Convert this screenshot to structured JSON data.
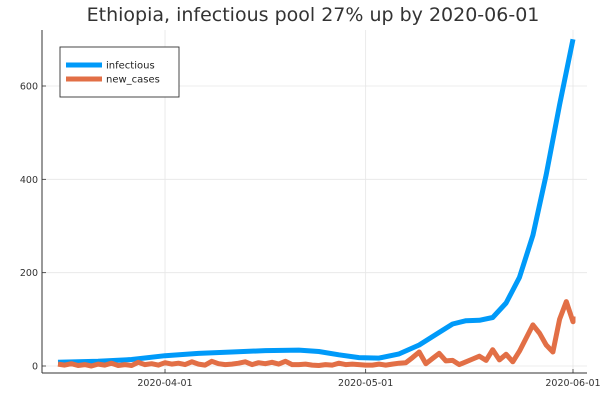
{
  "chart_data": {
    "type": "line",
    "title": "Ethiopia, infectious pool 27% up by 2020-06-01",
    "xlabel": "",
    "ylabel": "",
    "x_type": "date",
    "x_range": [
      "2020-03-16",
      "2020-06-01"
    ],
    "x_ticks": [
      "2020-04-01",
      "2020-05-01",
      "2020-06-01"
    ],
    "x_tick_labels": [
      "2020-04-01",
      "2020-05-01",
      "2020-06-01"
    ],
    "ylim": [
      -15,
      720
    ],
    "y_ticks": [
      0,
      200,
      400,
      600
    ],
    "y_tick_labels": [
      "0",
      "200",
      "400",
      "600"
    ],
    "grid": true,
    "legend_position": "top-left",
    "series": [
      {
        "name": "infectious",
        "color": "#009AF9",
        "points": [
          [
            "2020-03-16",
            8
          ],
          [
            "2020-03-22",
            10
          ],
          [
            "2020-03-27",
            14
          ],
          [
            "2020-04-01",
            22
          ],
          [
            "2020-04-06",
            27
          ],
          [
            "2020-04-11",
            30
          ],
          [
            "2020-04-16",
            33
          ],
          [
            "2020-04-21",
            34
          ],
          [
            "2020-04-24",
            31
          ],
          [
            "2020-04-27",
            24
          ],
          [
            "2020-04-30",
            18
          ],
          [
            "2020-05-03",
            17
          ],
          [
            "2020-05-06",
            26
          ],
          [
            "2020-05-09",
            45
          ],
          [
            "2020-05-12",
            72
          ],
          [
            "2020-05-14",
            90
          ],
          [
            "2020-05-16",
            97
          ],
          [
            "2020-05-18",
            98
          ],
          [
            "2020-05-20",
            104
          ],
          [
            "2020-05-22",
            135
          ],
          [
            "2020-05-24",
            190
          ],
          [
            "2020-05-26",
            280
          ],
          [
            "2020-05-28",
            410
          ],
          [
            "2020-05-30",
            560
          ],
          [
            "2020-06-01",
            700
          ]
        ]
      },
      {
        "name": "new_cases",
        "color": "#E26F46",
        "points": [
          [
            "2020-03-16",
            4
          ],
          [
            "2020-03-17",
            2
          ],
          [
            "2020-03-18",
            5
          ],
          [
            "2020-03-19",
            1
          ],
          [
            "2020-03-20",
            3
          ],
          [
            "2020-03-21",
            0
          ],
          [
            "2020-03-22",
            4
          ],
          [
            "2020-03-23",
            2
          ],
          [
            "2020-03-24",
            6
          ],
          [
            "2020-03-25",
            1
          ],
          [
            "2020-03-26",
            3
          ],
          [
            "2020-03-27",
            1
          ],
          [
            "2020-03-28",
            8
          ],
          [
            "2020-03-29",
            3
          ],
          [
            "2020-03-30",
            5
          ],
          [
            "2020-03-31",
            2
          ],
          [
            "2020-04-01",
            7
          ],
          [
            "2020-04-02",
            4
          ],
          [
            "2020-04-03",
            6
          ],
          [
            "2020-04-04",
            3
          ],
          [
            "2020-04-05",
            9
          ],
          [
            "2020-04-06",
            4
          ],
          [
            "2020-04-07",
            2
          ],
          [
            "2020-04-08",
            10
          ],
          [
            "2020-04-09",
            5
          ],
          [
            "2020-04-10",
            3
          ],
          [
            "2020-04-11",
            4
          ],
          [
            "2020-04-12",
            6
          ],
          [
            "2020-04-13",
            9
          ],
          [
            "2020-04-14",
            3
          ],
          [
            "2020-04-15",
            7
          ],
          [
            "2020-04-16",
            5
          ],
          [
            "2020-04-17",
            8
          ],
          [
            "2020-04-18",
            4
          ],
          [
            "2020-04-19",
            10
          ],
          [
            "2020-04-20",
            3
          ],
          [
            "2020-04-21",
            3
          ],
          [
            "2020-04-22",
            4
          ],
          [
            "2020-04-23",
            2
          ],
          [
            "2020-04-24",
            1
          ],
          [
            "2020-04-25",
            3
          ],
          [
            "2020-04-26",
            2
          ],
          [
            "2020-04-27",
            6
          ],
          [
            "2020-04-28",
            3
          ],
          [
            "2020-04-29",
            4
          ],
          [
            "2020-04-30",
            3
          ],
          [
            "2020-05-01",
            2
          ],
          [
            "2020-05-02",
            2
          ],
          [
            "2020-05-03",
            4
          ],
          [
            "2020-05-04",
            2
          ],
          [
            "2020-05-05",
            4
          ],
          [
            "2020-05-06",
            6
          ],
          [
            "2020-05-07",
            7
          ],
          [
            "2020-05-08",
            18
          ],
          [
            "2020-05-09",
            30
          ],
          [
            "2020-05-10",
            5
          ],
          [
            "2020-05-11",
            16
          ],
          [
            "2020-05-12",
            27
          ],
          [
            "2020-05-13",
            11
          ],
          [
            "2020-05-14",
            12
          ],
          [
            "2020-05-15",
            3
          ],
          [
            "2020-05-16",
            9
          ],
          [
            "2020-05-17",
            15
          ],
          [
            "2020-05-18",
            21
          ],
          [
            "2020-05-19",
            12
          ],
          [
            "2020-05-20",
            35
          ],
          [
            "2020-05-21",
            13
          ],
          [
            "2020-05-22",
            25
          ],
          [
            "2020-05-23",
            9
          ],
          [
            "2020-05-24",
            32
          ],
          [
            "2020-05-25",
            60
          ],
          [
            "2020-05-26",
            88
          ],
          [
            "2020-05-27",
            70
          ],
          [
            "2020-05-28",
            45
          ],
          [
            "2020-05-29",
            30
          ],
          [
            "2020-05-30",
            100
          ],
          [
            "2020-05-31",
            138
          ],
          [
            "2020-06-01",
            95
          ],
          [
            "2020-06-01",
            106
          ]
        ]
      }
    ]
  }
}
